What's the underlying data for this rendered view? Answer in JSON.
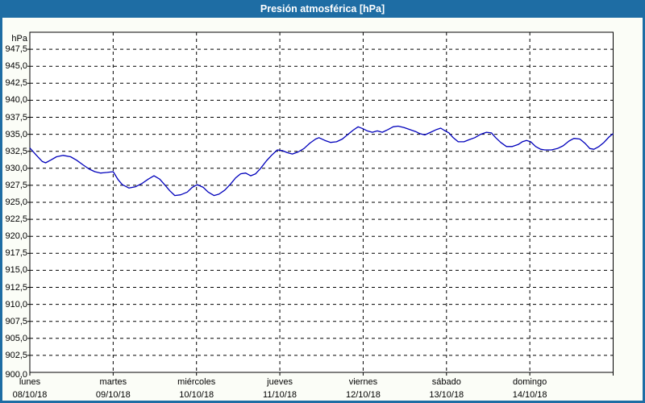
{
  "window": {
    "title": "Presión atmosférica [hPa]"
  },
  "colors": {
    "titlebar": "#1e6da4",
    "window_bg": "#fbfdf7",
    "plot_bg": "#ffffff",
    "grid": "#000000",
    "text": "#000000",
    "line": "#0000bb"
  },
  "chart_data": {
    "type": "line",
    "title": "Presión atmosférica [hPa]",
    "ylabel_unit": "hPa",
    "ylim": [
      900,
      950
    ],
    "y_tick_step": 2.5,
    "y_tick_labels": [
      "947,5",
      "945,0",
      "942,5",
      "940,0",
      "937,5",
      "935,0",
      "932,5",
      "930,0",
      "927,5",
      "925,0",
      "922,5",
      "920,0",
      "917,5",
      "915,0",
      "912,5",
      "910,0",
      "907,5",
      "905,0",
      "902,5",
      "900,0"
    ],
    "grid": "dashed",
    "legend": "none",
    "x_range_days": [
      0,
      7
    ],
    "x_days": [
      {
        "name": "lunes",
        "date": "08/10/18"
      },
      {
        "name": "martes",
        "date": "09/10/18"
      },
      {
        "name": "miércoles",
        "date": "10/10/18"
      },
      {
        "name": "jueves",
        "date": "11/10/18"
      },
      {
        "name": "viernes",
        "date": "12/10/18"
      },
      {
        "name": "sábado",
        "date": "13/10/18"
      },
      {
        "name": "domingo",
        "date": "14/10/18"
      }
    ],
    "series": [
      {
        "name": "Presión atmosférica [hPa]",
        "points": [
          [
            0.0,
            933.0
          ],
          [
            0.08,
            931.9
          ],
          [
            0.15,
            931.0
          ],
          [
            0.19,
            930.8
          ],
          [
            0.25,
            931.2
          ],
          [
            0.32,
            931.7
          ],
          [
            0.4,
            931.9
          ],
          [
            0.49,
            931.7
          ],
          [
            0.56,
            931.2
          ],
          [
            0.64,
            930.5
          ],
          [
            0.71,
            929.9
          ],
          [
            0.78,
            929.5
          ],
          [
            0.85,
            929.3
          ],
          [
            0.93,
            929.4
          ],
          [
            1.0,
            929.5
          ],
          [
            1.06,
            928.3
          ],
          [
            1.11,
            927.6
          ],
          [
            1.19,
            927.1
          ],
          [
            1.27,
            927.3
          ],
          [
            1.35,
            927.8
          ],
          [
            1.42,
            928.4
          ],
          [
            1.49,
            928.9
          ],
          [
            1.56,
            928.4
          ],
          [
            1.63,
            927.4
          ],
          [
            1.68,
            926.7
          ],
          [
            1.74,
            926.0
          ],
          [
            1.81,
            926.1
          ],
          [
            1.89,
            926.5
          ],
          [
            1.95,
            927.2
          ],
          [
            2.01,
            927.6
          ],
          [
            2.08,
            927.2
          ],
          [
            2.14,
            926.5
          ],
          [
            2.21,
            926.0
          ],
          [
            2.27,
            926.2
          ],
          [
            2.34,
            926.8
          ],
          [
            2.41,
            927.7
          ],
          [
            2.47,
            928.6
          ],
          [
            2.53,
            929.2
          ],
          [
            2.59,
            929.3
          ],
          [
            2.65,
            928.9
          ],
          [
            2.71,
            929.2
          ],
          [
            2.77,
            930.0
          ],
          [
            2.84,
            931.1
          ],
          [
            2.9,
            931.9
          ],
          [
            2.97,
            932.7
          ],
          [
            3.03,
            932.6
          ],
          [
            3.09,
            932.3
          ],
          [
            3.15,
            932.1
          ],
          [
            3.22,
            932.4
          ],
          [
            3.29,
            932.9
          ],
          [
            3.36,
            933.7
          ],
          [
            3.43,
            934.3
          ],
          [
            3.47,
            934.5
          ],
          [
            3.54,
            934.1
          ],
          [
            3.61,
            933.8
          ],
          [
            3.68,
            933.9
          ],
          [
            3.75,
            934.3
          ],
          [
            3.81,
            934.9
          ],
          [
            3.88,
            935.6
          ],
          [
            3.94,
            936.1
          ],
          [
            4.0,
            935.8
          ],
          [
            4.05,
            935.5
          ],
          [
            4.11,
            935.3
          ],
          [
            4.17,
            935.5
          ],
          [
            4.23,
            935.3
          ],
          [
            4.3,
            935.7
          ],
          [
            4.36,
            936.1
          ],
          [
            4.42,
            936.2
          ],
          [
            4.49,
            936.0
          ],
          [
            4.56,
            935.7
          ],
          [
            4.63,
            935.4
          ],
          [
            4.68,
            935.1
          ],
          [
            4.74,
            934.9
          ],
          [
            4.81,
            935.3
          ],
          [
            4.88,
            935.7
          ],
          [
            4.93,
            935.9
          ],
          [
            4.97,
            935.6
          ],
          [
            5.03,
            935.2
          ],
          [
            5.08,
            934.5
          ],
          [
            5.14,
            933.9
          ],
          [
            5.21,
            933.9
          ],
          [
            5.27,
            934.2
          ],
          [
            5.34,
            934.5
          ],
          [
            5.41,
            935.0
          ],
          [
            5.48,
            935.3
          ],
          [
            5.54,
            935.2
          ],
          [
            5.59,
            934.5
          ],
          [
            5.65,
            933.8
          ],
          [
            5.72,
            933.2
          ],
          [
            5.79,
            933.2
          ],
          [
            5.86,
            933.5
          ],
          [
            5.91,
            933.9
          ],
          [
            5.96,
            934.1
          ],
          [
            6.01,
            933.9
          ],
          [
            6.07,
            933.2
          ],
          [
            6.13,
            932.8
          ],
          [
            6.18,
            932.7
          ],
          [
            6.26,
            932.7
          ],
          [
            6.33,
            932.9
          ],
          [
            6.4,
            933.3
          ],
          [
            6.47,
            934.0
          ],
          [
            6.53,
            934.4
          ],
          [
            6.6,
            934.3
          ],
          [
            6.66,
            933.7
          ],
          [
            6.72,
            932.9
          ],
          [
            6.77,
            932.8
          ],
          [
            6.83,
            933.2
          ],
          [
            6.89,
            933.8
          ],
          [
            6.95,
            934.6
          ],
          [
            7.0,
            935.1
          ]
        ]
      }
    ]
  }
}
